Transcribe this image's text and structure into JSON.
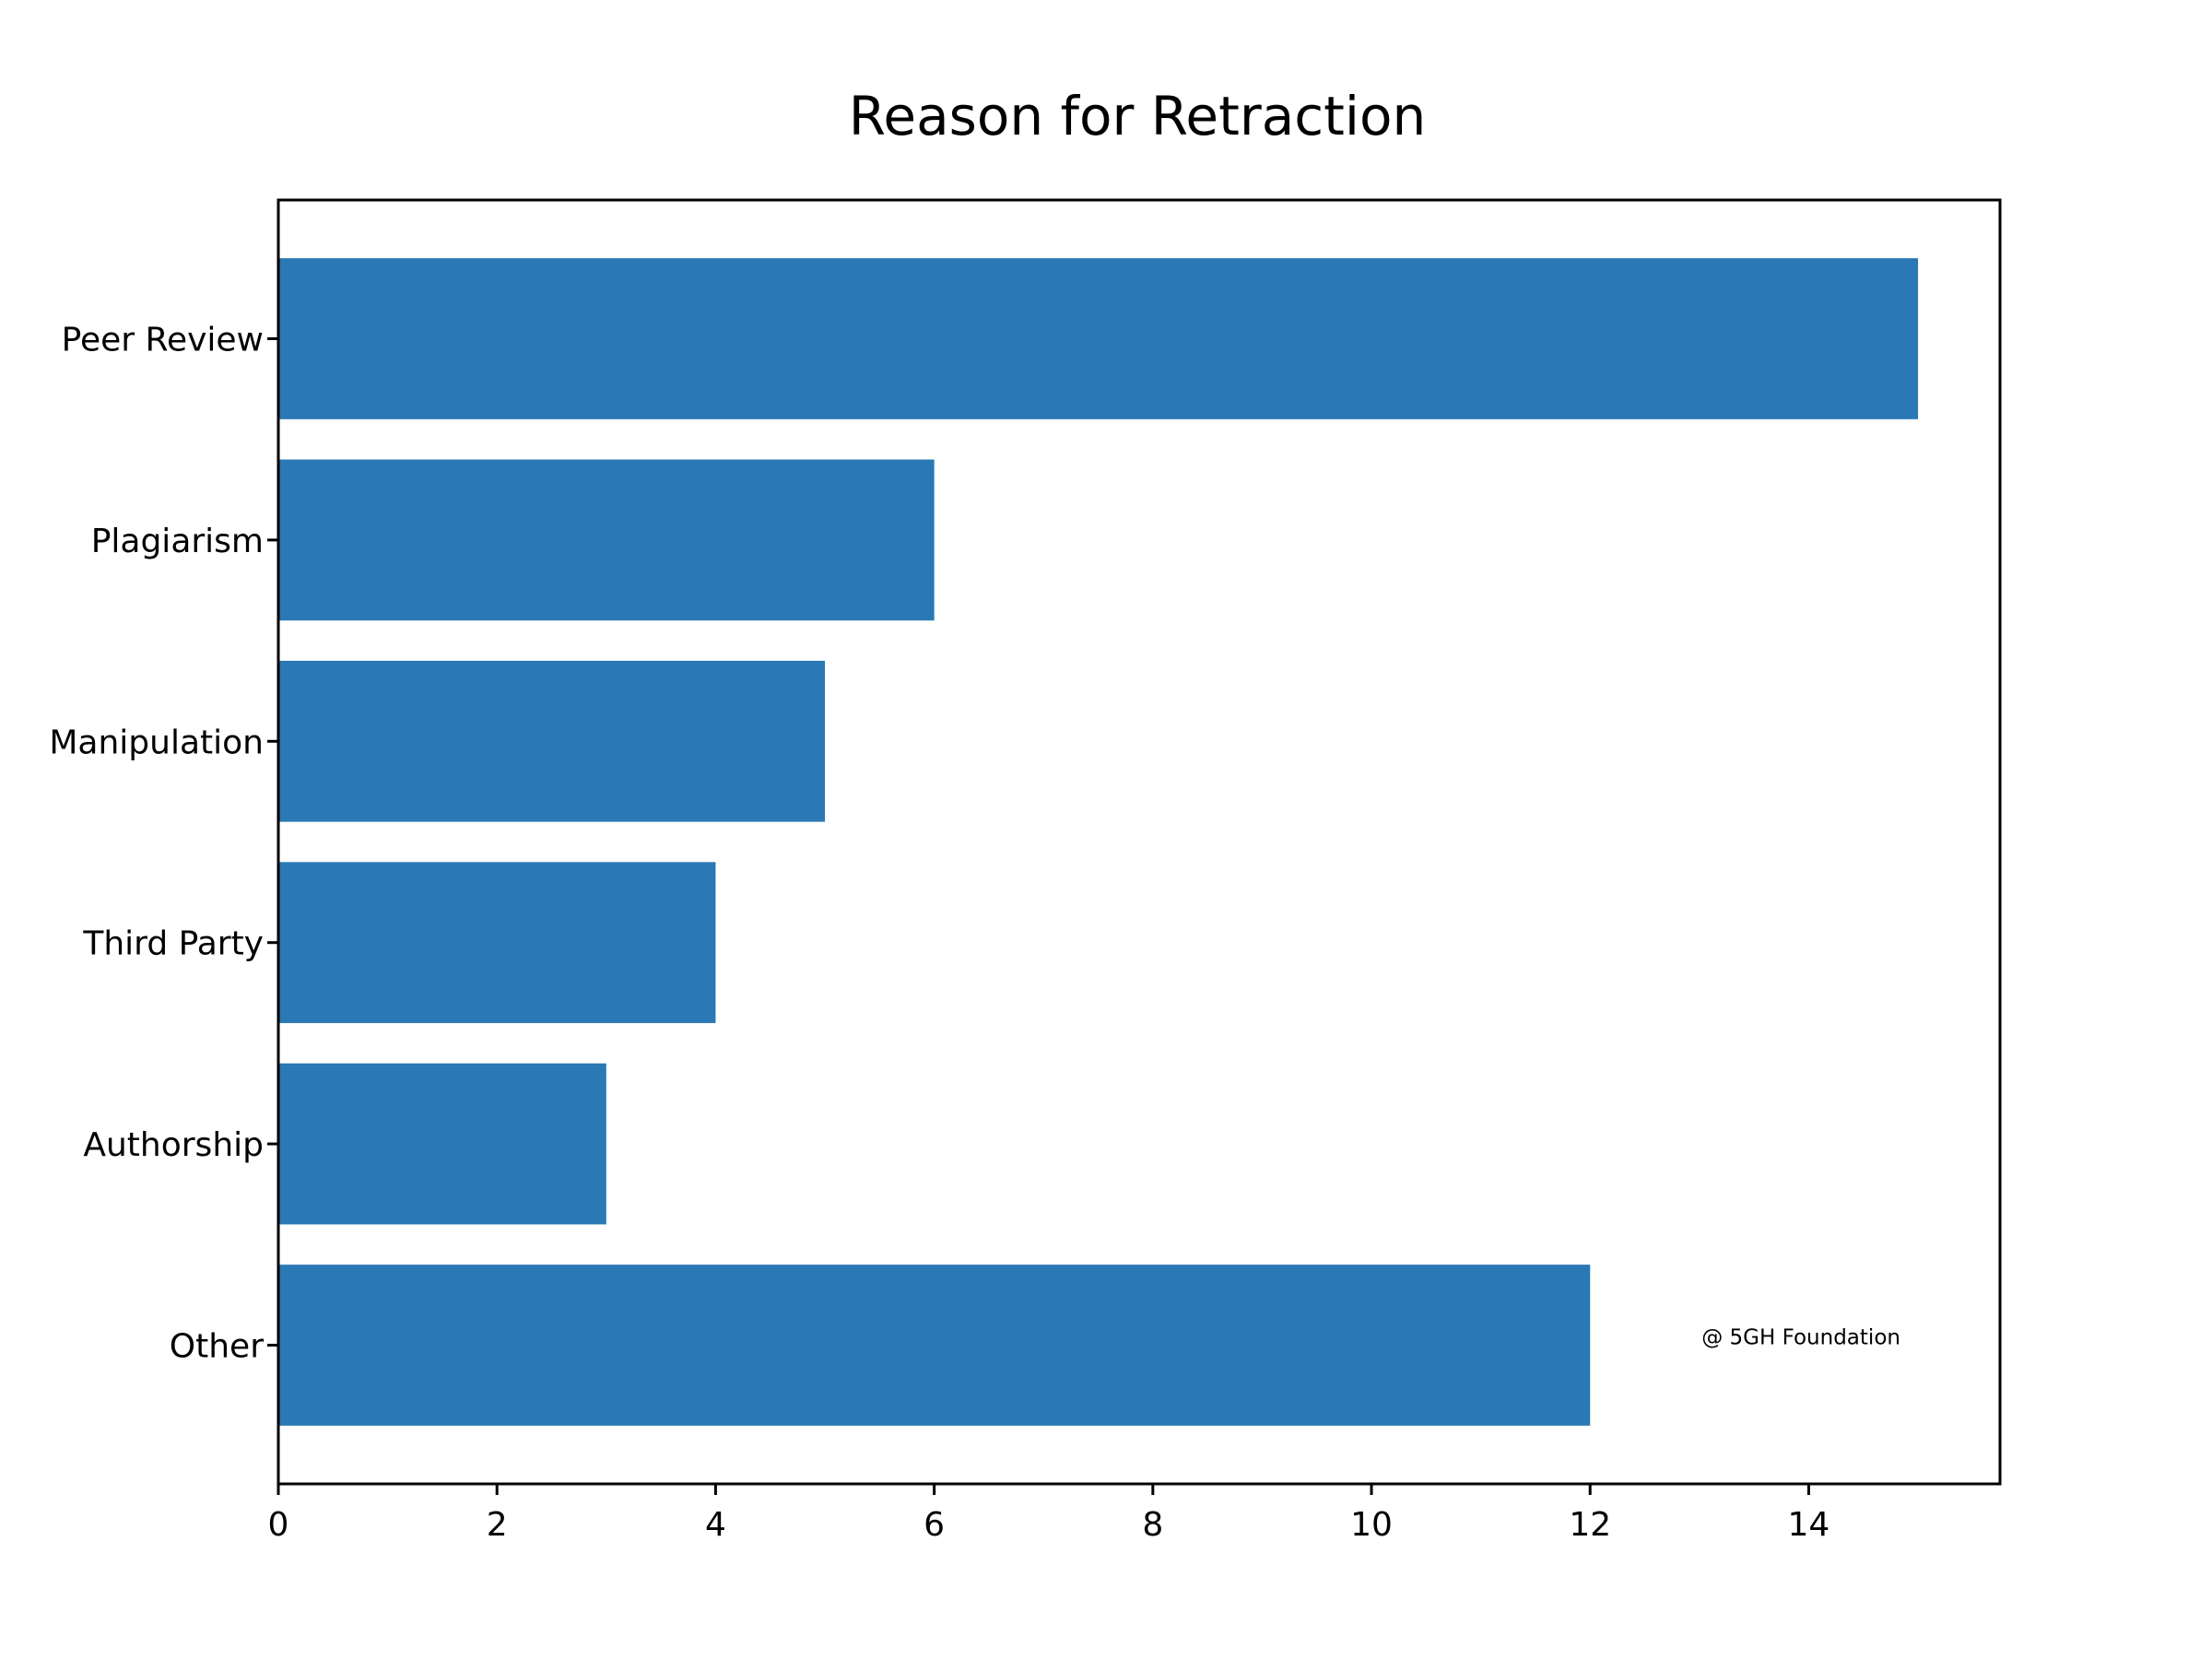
{
  "chart_data": {
    "type": "bar",
    "orientation": "horizontal",
    "title": "Reason for Retraction",
    "xlabel": "",
    "ylabel": "",
    "categories": [
      "Peer Review",
      "Plagiarism",
      "Manipulation",
      "Third Party",
      "Authorship",
      "Other"
    ],
    "values": [
      15,
      6,
      5,
      4,
      3,
      12
    ],
    "xlim": [
      0,
      15.75
    ],
    "xticks": [
      0,
      2,
      4,
      6,
      8,
      10,
      12,
      14
    ],
    "grid": false,
    "legend": "none",
    "annotation": "@ 5GH Foundation",
    "colors": {
      "bar": "#2a78b4",
      "axis": "#000000",
      "background": "#ffffff"
    }
  }
}
